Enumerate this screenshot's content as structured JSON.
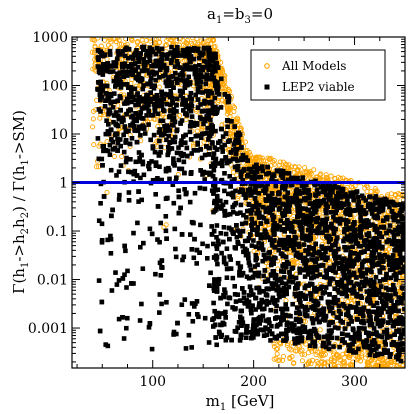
{
  "chart_data": {
    "type": "scatter",
    "title": "a₁=b₃=0",
    "title_parts": {
      "a": "a",
      "a_sub": "1",
      "eq1": "=b",
      "b_sub": "3",
      "eq2": "=0"
    },
    "xlabel": "m₁ [GeV]",
    "xlabel_parts": {
      "m": "m",
      "m_sub": "1",
      "unit": " [GeV]"
    },
    "ylabel": "Γ(h₁->h₂h₂) / Γ(h₁->SM)",
    "ylabel_parts": {
      "a": "Γ(h",
      "s1": "1",
      "b": "->h",
      "s2": "2",
      "c": "h",
      "s3": "2",
      "d": ") / Γ(h",
      "s4": "1",
      "e": "->SM)"
    },
    "xlim": [
      20,
      350
    ],
    "ylim": [
      0.00015,
      1000
    ],
    "yscale": "log",
    "x_ticks": [
      {
        "value": 100,
        "label": "100"
      },
      {
        "value": 200,
        "label": "200"
      },
      {
        "value": 300,
        "label": "300"
      }
    ],
    "y_ticks": [
      {
        "value": 1000,
        "label": "1000"
      },
      {
        "value": 100,
        "label": "100"
      },
      {
        "value": 10,
        "label": "10"
      },
      {
        "value": 1,
        "label": "1"
      },
      {
        "value": 0.1,
        "label": "0.1"
      },
      {
        "value": 0.01,
        "label": "0.01"
      },
      {
        "value": 0.001,
        "label": "0.001"
      }
    ],
    "reference_line": {
      "y": 1,
      "color": "#0000dd"
    },
    "legend_placement": "top-right",
    "series": [
      {
        "name": "All Models",
        "marker": "open-circle",
        "color": "#ffa500",
        "n_points": 2600
      },
      {
        "name": "LEP2 viable",
        "marker": "filled-square",
        "color": "#000000",
        "n_points": 3600
      }
    ],
    "grid": false
  }
}
